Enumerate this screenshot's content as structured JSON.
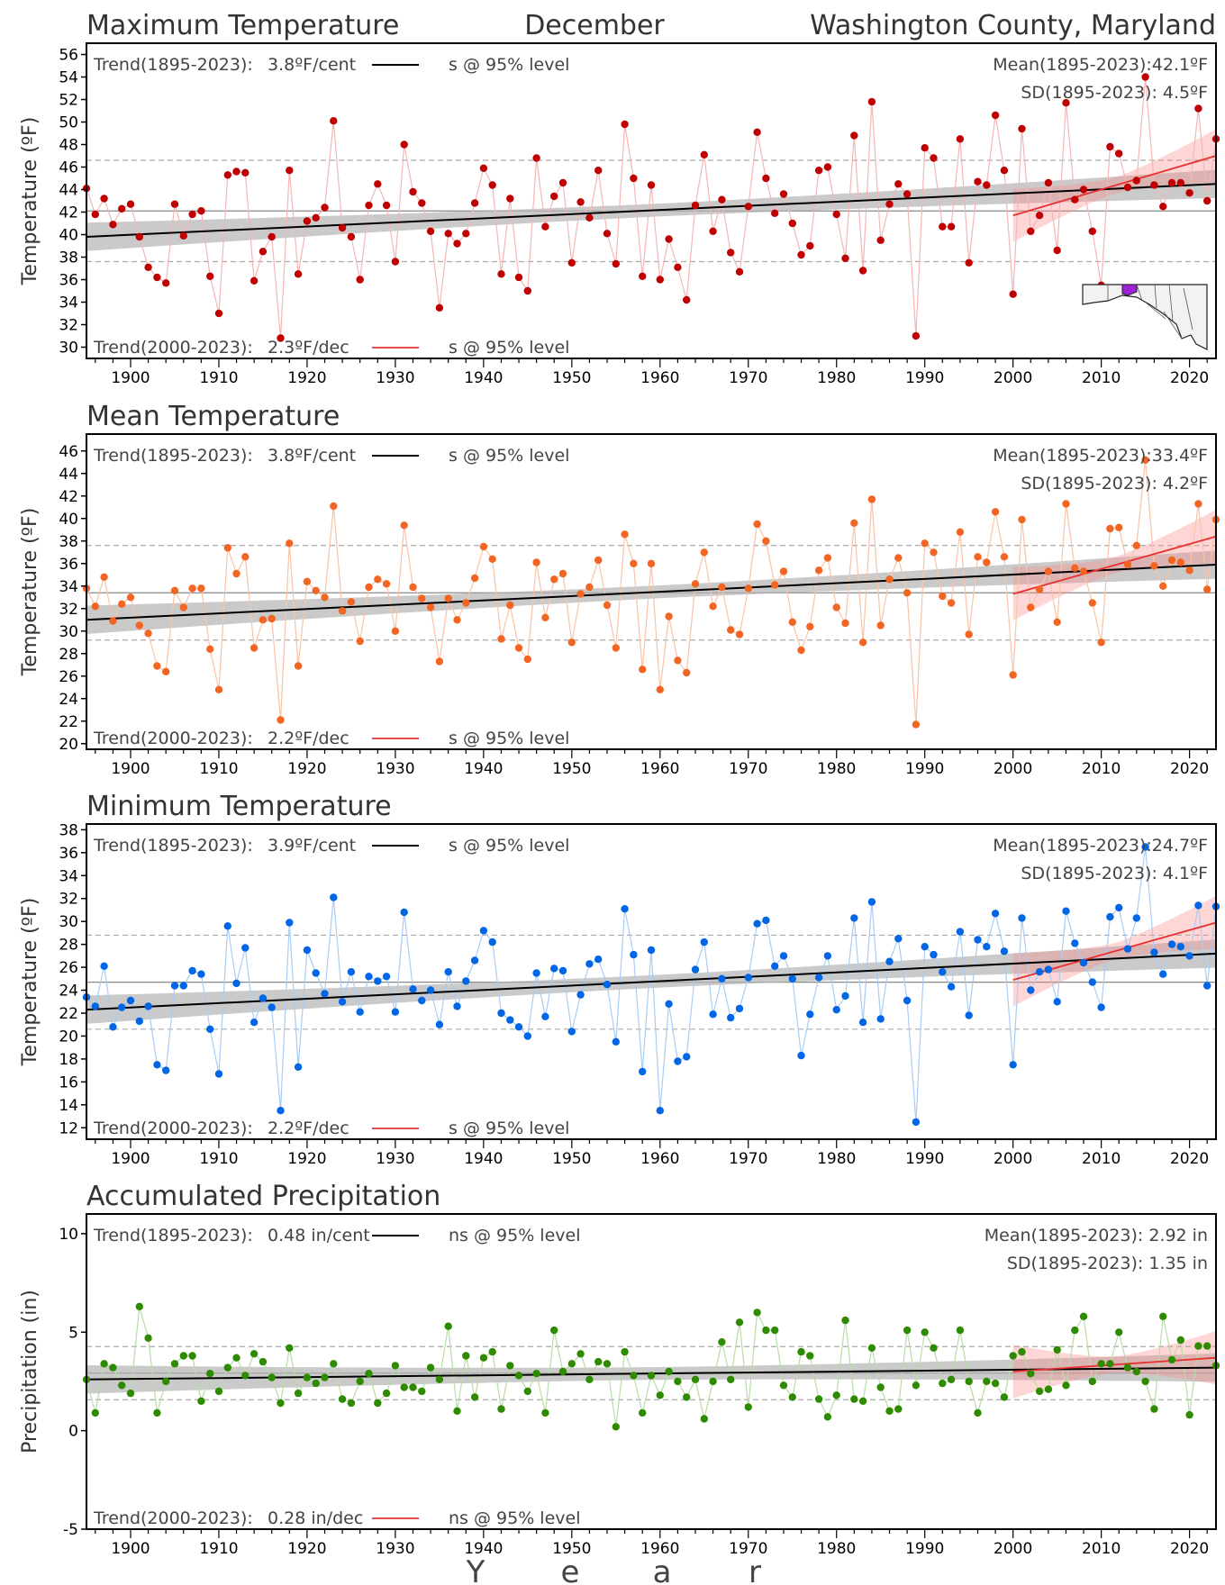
{
  "header": {
    "title_left": "Maximum Temperature",
    "title_center": "December",
    "title_right": "Washington County, Maryland"
  },
  "x_axis_label": [
    "Y",
    "e",
    "a",
    "r"
  ],
  "chart_data": [
    {
      "type": "scatter",
      "title": "Maximum Temperature",
      "ylabel": "Temperature (ºF)",
      "ylim": [
        29,
        57
      ],
      "yticks": [
        30,
        32,
        34,
        36,
        38,
        40,
        42,
        44,
        46,
        48,
        50,
        52,
        54,
        56
      ],
      "xlim": [
        1895,
        2023
      ],
      "xticks": [
        1900,
        1910,
        1920,
        1930,
        1940,
        1950,
        1960,
        1970,
        1980,
        1990,
        2000,
        2010,
        2020
      ],
      "trend_long": {
        "label": "Trend(1895-2023):",
        "value": "3.8ºF/cent",
        "sig": "s @ 95% level",
        "start": 39.8,
        "end": 44.5
      },
      "trend_recent": {
        "label": "Trend(2000-2023):",
        "value": "2.3ºF/dec",
        "sig": "s @ 95% level",
        "start": 41.7,
        "end": 47.0
      },
      "mean_text": "Mean(1895-2023):42.1ºF",
      "sd_text": "SD(1895-2023): 4.5ºF",
      "mean": 42.1,
      "sd": 4.5,
      "color": "#c00000",
      "line_color": "#f4b6b6",
      "has_map": true,
      "x_start": 1895,
      "values": [
        44.1,
        41.8,
        43.2,
        40.9,
        42.3,
        42.7,
        39.8,
        37.1,
        36.2,
        35.7,
        42.7,
        39.9,
        41.8,
        42.1,
        36.3,
        33.0,
        45.3,
        45.6,
        45.5,
        35.9,
        38.5,
        39.8,
        30.8,
        45.7,
        36.5,
        41.2,
        41.5,
        42.4,
        50.1,
        40.6,
        39.8,
        36.0,
        42.6,
        44.5,
        42.6,
        37.6,
        48.0,
        43.8,
        42.8,
        40.3,
        33.5,
        40.1,
        39.2,
        40.1,
        42.8,
        45.9,
        44.4,
        36.5,
        43.2,
        36.2,
        35.0,
        46.8,
        40.7,
        43.4,
        44.6,
        37.5,
        42.9,
        41.5,
        45.7,
        40.1,
        37.4,
        49.8,
        45.0,
        36.3,
        44.4,
        36.0,
        39.6,
        37.1,
        34.2,
        42.6,
        47.1,
        40.3,
        43.1,
        38.4,
        36.7,
        42.5,
        49.1,
        45.0,
        41.9,
        43.6,
        41.0,
        38.2,
        39.0,
        45.7,
        46.0,
        41.8,
        37.9,
        48.8,
        36.8,
        51.8,
        39.5,
        42.7,
        44.5,
        43.6,
        31.0,
        47.7,
        46.8,
        40.7,
        40.7,
        48.5,
        37.5,
        44.7,
        44.4,
        50.6,
        45.7,
        34.7,
        49.4,
        40.3,
        41.7,
        44.6,
        38.6,
        51.7,
        43.1,
        44.0,
        40.3,
        35.5,
        47.8,
        47.2,
        44.2,
        44.8,
        54.0,
        44.4,
        42.5,
        44.6,
        44.6,
        43.7,
        51.2,
        43.0,
        48.5
      ]
    },
    {
      "type": "scatter",
      "title": "Mean Temperature",
      "ylabel": "Temperature (ºF)",
      "ylim": [
        19.5,
        47.5
      ],
      "yticks": [
        20,
        22,
        24,
        26,
        28,
        30,
        32,
        34,
        36,
        38,
        40,
        42,
        44,
        46
      ],
      "xlim": [
        1895,
        2023
      ],
      "xticks": [
        1900,
        1910,
        1920,
        1930,
        1940,
        1950,
        1960,
        1970,
        1980,
        1990,
        2000,
        2010,
        2020
      ],
      "trend_long": {
        "label": "Trend(1895-2023):",
        "value": "3.8ºF/cent",
        "sig": "s @ 95% level",
        "start": 31.0,
        "end": 35.9
      },
      "trend_recent": {
        "label": "Trend(2000-2023):",
        "value": "2.2ºF/dec",
        "sig": "s @ 95% level",
        "start": 33.3,
        "end": 38.4
      },
      "mean_text": "Mean(1895-2023):33.4ºF",
      "sd_text": "SD(1895-2023): 4.2ºF",
      "mean": 33.4,
      "sd": 4.2,
      "color": "#f26522",
      "line_color": "#f9c4a8",
      "has_map": false,
      "x_start": 1895,
      "values": [
        33.8,
        32.2,
        34.8,
        30.9,
        32.4,
        33.0,
        30.5,
        29.8,
        26.9,
        26.4,
        33.6,
        32.1,
        33.8,
        33.8,
        28.4,
        24.8,
        37.4,
        35.1,
        36.6,
        28.5,
        31.0,
        31.1,
        22.1,
        37.8,
        26.9,
        34.4,
        33.6,
        33.0,
        41.1,
        31.8,
        32.6,
        29.1,
        33.9,
        34.6,
        34.2,
        30.0,
        39.4,
        33.9,
        32.9,
        32.1,
        27.3,
        32.9,
        31.0,
        32.5,
        34.7,
        37.5,
        36.4,
        29.3,
        32.3,
        28.5,
        27.5,
        36.1,
        31.2,
        34.6,
        35.1,
        29.0,
        33.3,
        33.9,
        36.3,
        32.3,
        28.5,
        38.6,
        36.0,
        26.6,
        36.0,
        24.8,
        31.3,
        27.4,
        26.3,
        34.2,
        37.0,
        32.2,
        33.9,
        30.1,
        29.7,
        33.8,
        39.5,
        38.0,
        34.1,
        35.3,
        30.8,
        28.3,
        30.4,
        35.4,
        36.5,
        32.1,
        30.7,
        39.6,
        29.0,
        41.7,
        30.5,
        34.6,
        36.5,
        33.4,
        21.7,
        37.8,
        37.0,
        33.1,
        32.5,
        38.8,
        29.7,
        36.6,
        36.1,
        40.6,
        36.6,
        26.1,
        39.9,
        32.1,
        33.7,
        35.3,
        30.8,
        41.3,
        35.6,
        35.3,
        32.5,
        29.0,
        39.1,
        39.2,
        35.9,
        37.6,
        45.2,
        35.8,
        34.0,
        36.3,
        36.1,
        35.4,
        41.3,
        33.7,
        39.9
      ]
    },
    {
      "type": "scatter",
      "title": "Minimum Temperature",
      "ylabel": "Temperature (ºF)",
      "ylim": [
        11,
        38.5
      ],
      "yticks": [
        12,
        14,
        16,
        18,
        20,
        22,
        24,
        26,
        28,
        30,
        32,
        34,
        36,
        38
      ],
      "xlim": [
        1895,
        2023
      ],
      "xticks": [
        1900,
        1910,
        1920,
        1930,
        1940,
        1950,
        1960,
        1970,
        1980,
        1990,
        2000,
        2010,
        2020
      ],
      "trend_long": {
        "label": "Trend(1895-2023):",
        "value": "3.9ºF/cent",
        "sig": "s @ 95% level",
        "start": 22.3,
        "end": 27.2
      },
      "trend_recent": {
        "label": "Trend(2000-2023):",
        "value": "2.2ºF/dec",
        "sig": "s @ 95% level",
        "start": 24.9,
        "end": 29.9
      },
      "mean_text": "Mean(1895-2023):24.7ºF",
      "sd_text": "SD(1895-2023): 4.1ºF",
      "mean": 24.7,
      "sd": 4.1,
      "color": "#0066e6",
      "line_color": "#a8ccf4",
      "has_map": false,
      "x_start": 1895,
      "values": [
        23.4,
        22.6,
        26.1,
        20.8,
        22.5,
        23.1,
        21.3,
        22.6,
        17.5,
        17.0,
        24.4,
        24.4,
        25.7,
        25.4,
        20.6,
        16.7,
        29.6,
        24.6,
        27.7,
        21.2,
        23.3,
        22.5,
        13.5,
        29.9,
        17.3,
        27.5,
        25.5,
        23.7,
        32.1,
        23.0,
        25.6,
        22.1,
        25.2,
        24.8,
        25.2,
        22.1,
        30.8,
        24.1,
        23.1,
        24.0,
        21.0,
        25.6,
        22.6,
        24.8,
        26.6,
        29.2,
        28.2,
        22.0,
        21.4,
        20.8,
        20.0,
        25.5,
        21.7,
        25.9,
        25.7,
        20.4,
        23.6,
        26.3,
        26.7,
        24.5,
        19.5,
        31.1,
        27.1,
        16.9,
        27.5,
        13.5,
        22.8,
        17.8,
        18.2,
        25.8,
        28.2,
        21.9,
        25.0,
        21.6,
        22.4,
        25.1,
        29.8,
        30.1,
        26.1,
        27.0,
        25.0,
        18.3,
        21.9,
        25.1,
        27.0,
        22.3,
        23.5,
        30.3,
        21.2,
        31.7,
        21.5,
        26.5,
        28.5,
        23.1,
        12.5,
        27.8,
        27.1,
        25.6,
        24.3,
        29.1,
        21.8,
        28.4,
        27.8,
        30.7,
        27.4,
        17.5,
        30.3,
        24.0,
        25.6,
        25.8,
        23.0,
        30.9,
        28.1,
        26.4,
        24.7,
        22.5,
        30.4,
        31.2,
        27.6,
        30.3,
        36.5,
        27.3,
        25.4,
        28.0,
        27.8,
        27.0,
        31.4,
        24.4,
        31.3
      ]
    },
    {
      "type": "scatter",
      "title": "Accumulated Precipitation",
      "ylabel": "Precipitation (in)",
      "ylim": [
        -5,
        11
      ],
      "yticks": [
        -5,
        0,
        5,
        10
      ],
      "xlim": [
        1895,
        2023
      ],
      "xticks": [
        1900,
        1910,
        1920,
        1930,
        1940,
        1950,
        1960,
        1970,
        1980,
        1990,
        2000,
        2010,
        2020
      ],
      "trend_long": {
        "label": "Trend(1895-2023):",
        "value": "0.48 in/cent",
        "sig": "ns @ 95% level",
        "start": 2.6,
        "end": 3.2
      },
      "trend_recent": {
        "label": "Trend(2000-2023):",
        "value": "0.28 in/dec",
        "sig": "ns @ 95% level",
        "start": 3.0,
        "end": 3.7
      },
      "mean_text": "Mean(1895-2023): 2.92 in",
      "sd_text": "SD(1895-2023): 1.35 in",
      "mean": 2.92,
      "sd": 1.35,
      "color": "#2e8b00",
      "line_color": "#b8dca8",
      "has_map": false,
      "x_start": 1895,
      "values": [
        2.6,
        0.9,
        3.4,
        3.2,
        2.3,
        1.9,
        6.3,
        4.7,
        0.9,
        2.5,
        3.4,
        3.8,
        3.8,
        1.5,
        2.9,
        2.0,
        3.2,
        3.7,
        2.8,
        3.9,
        3.5,
        2.7,
        1.4,
        4.2,
        1.9,
        2.7,
        2.4,
        2.7,
        3.4,
        1.6,
        1.4,
        2.5,
        2.9,
        1.4,
        1.9,
        3.3,
        2.2,
        2.2,
        2.0,
        3.2,
        2.6,
        5.3,
        1.0,
        3.8,
        1.7,
        3.7,
        4.0,
        1.1,
        3.3,
        2.8,
        2.0,
        2.9,
        0.9,
        5.1,
        3.0,
        3.4,
        3.9,
        2.6,
        3.5,
        3.4,
        0.2,
        4.0,
        2.8,
        0.9,
        2.8,
        1.8,
        3.0,
        2.5,
        1.7,
        2.6,
        0.6,
        2.5,
        4.5,
        2.6,
        5.5,
        1.2,
        6.0,
        5.1,
        5.1,
        2.3,
        1.7,
        4.0,
        3.8,
        1.6,
        0.7,
        1.8,
        5.6,
        1.6,
        1.5,
        4.2,
        2.2,
        1.0,
        1.1,
        5.1,
        2.3,
        5.0,
        4.2,
        2.4,
        2.6,
        5.1,
        2.5,
        0.9,
        2.5,
        2.4,
        1.7,
        3.8,
        4.0,
        2.9,
        2.0,
        2.1,
        4.1,
        2.3,
        5.1,
        5.8,
        2.5,
        3.4,
        3.4,
        5.0,
        3.2,
        3.0,
        2.5,
        1.1,
        5.8,
        3.6,
        4.6,
        0.8,
        4.3,
        4.3,
        3.3
      ]
    }
  ]
}
